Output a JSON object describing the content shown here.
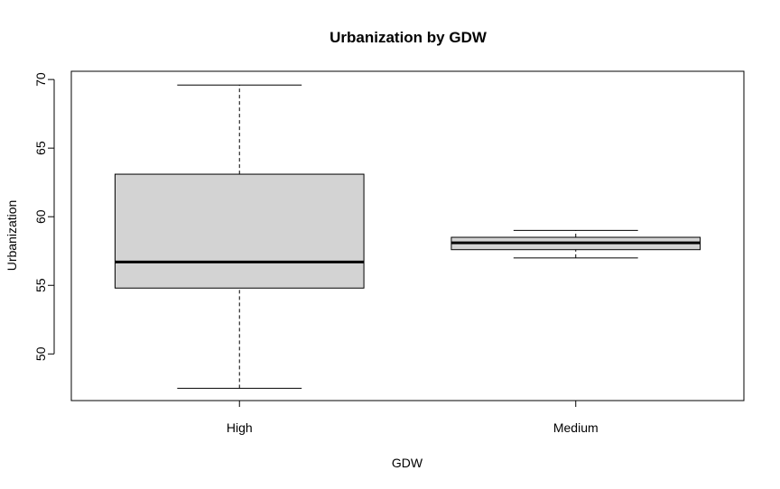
{
  "chart_data": {
    "type": "boxplot",
    "title": "Urbanization by GDW",
    "xlabel": "GDW",
    "ylabel": "Urbanization",
    "ylim": [
      46.6,
      70.6
    ],
    "yticks": [
      50,
      55,
      60,
      65,
      70
    ],
    "grid": false,
    "colors": {
      "box_fill": "#d3d3d3",
      "stroke": "#000000",
      "background": "#ffffff"
    },
    "categories": [
      "High",
      "Medium"
    ],
    "boxes": [
      {
        "category": "High",
        "whisker_low": 47.5,
        "q1": 54.8,
        "median": 56.7,
        "q3": 63.1,
        "whisker_high": 69.6
      },
      {
        "category": "Medium",
        "whisker_low": 57.0,
        "q1": 57.6,
        "median": 58.1,
        "q3": 58.5,
        "whisker_high": 59.0
      }
    ]
  }
}
